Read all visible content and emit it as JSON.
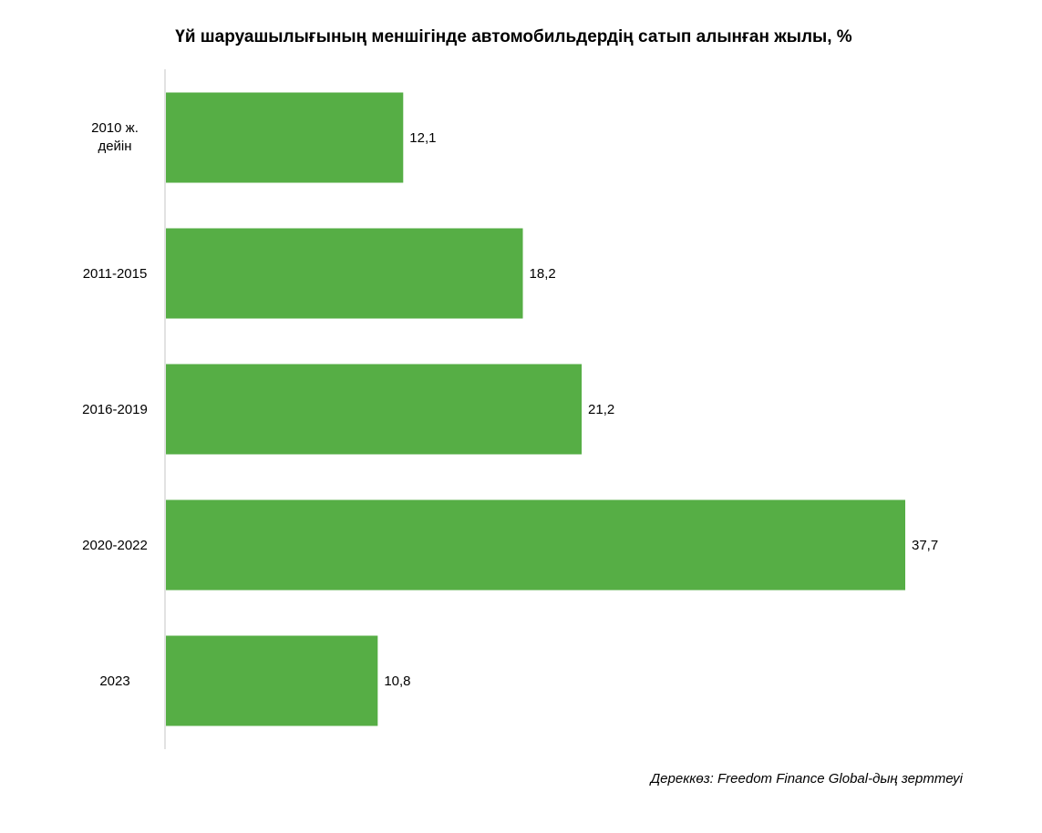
{
  "chart_data": {
    "type": "bar",
    "orientation": "horizontal",
    "title": "Үй шаруашылығының меншігінде автомобильдердің сатып алынған жылы, %",
    "categories": [
      "2010 ж. дейін",
      "2011-2015",
      "2016-2019",
      "2020-2022",
      "2023"
    ],
    "values": [
      12.1,
      18.2,
      21.2,
      37.7,
      10.8
    ],
    "value_labels": [
      "12,1",
      "18,2",
      "21,2",
      "37,7",
      "10,8"
    ],
    "xlim": [
      0,
      40
    ],
    "grid": false,
    "bar_color": "#56ae45",
    "source": "Дереккөз: Freedom Finance Global-дың зерттеуі"
  }
}
